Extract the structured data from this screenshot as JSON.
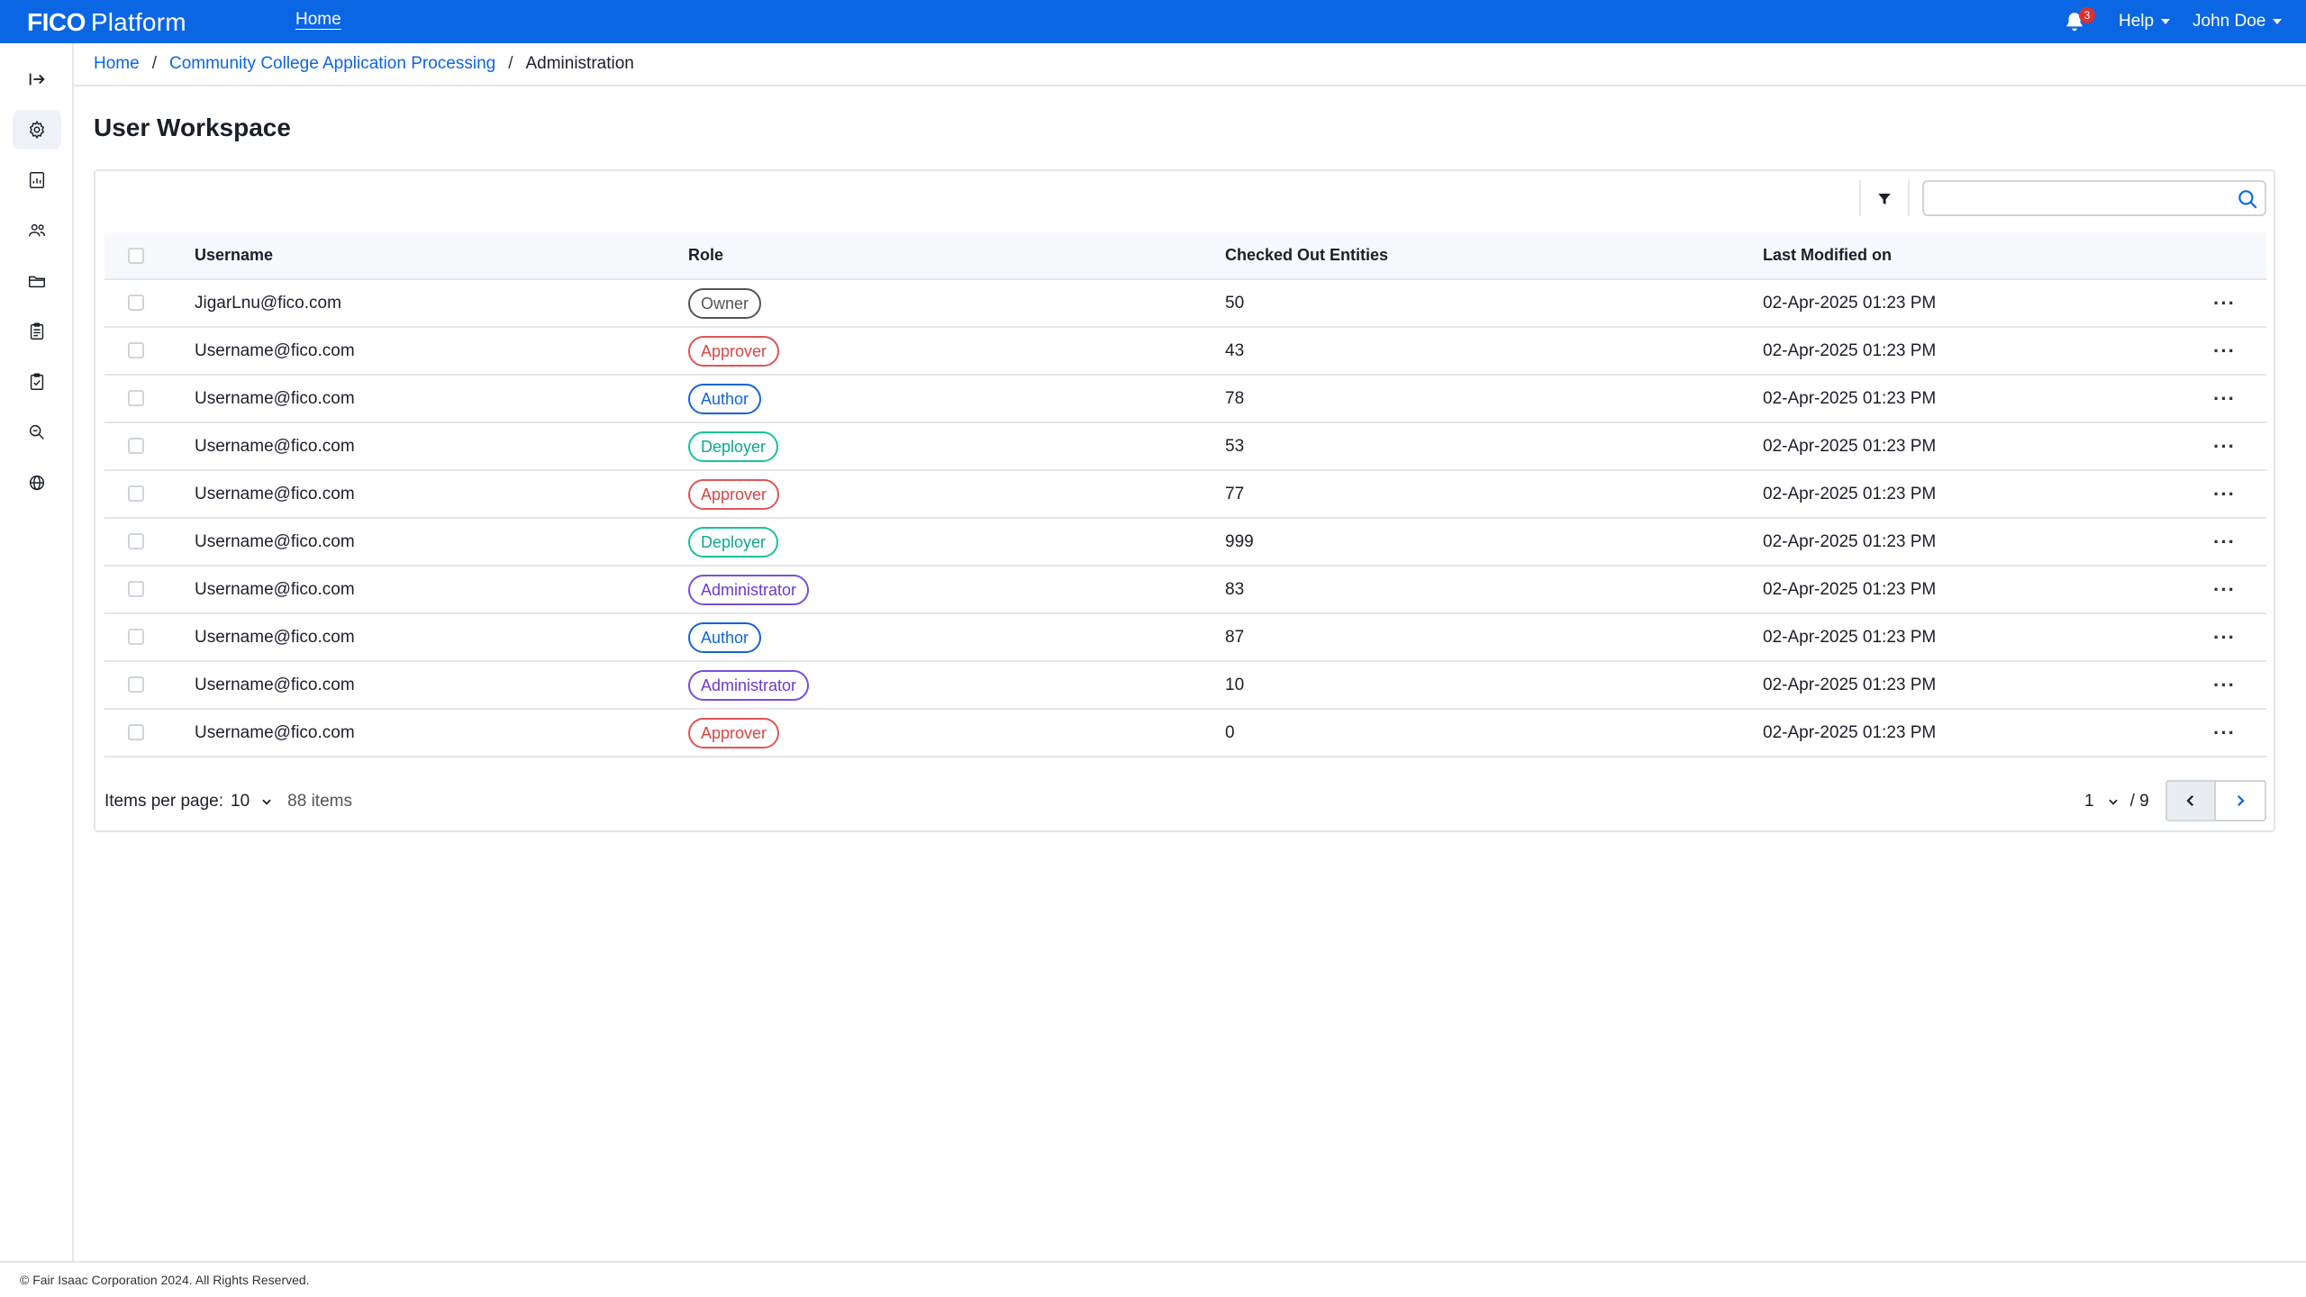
{
  "header": {
    "brand_bold": "FICO",
    "brand_rest": "Platform",
    "nav_home": "Home",
    "notification_count": "3",
    "help_label": "Help",
    "user_label": "John Doe",
    "accent": "#0b66e4"
  },
  "sidebar": {
    "items": [
      {
        "icon": "expand-arrow-icon"
      },
      {
        "icon": "gear-icon",
        "active": true
      },
      {
        "icon": "report-icon"
      },
      {
        "icon": "users-icon"
      },
      {
        "icon": "folder-icon"
      },
      {
        "icon": "clipboard-list-icon"
      },
      {
        "icon": "clipboard-check-icon"
      },
      {
        "icon": "search-zoom-icon"
      },
      {
        "icon": "globe-icon"
      }
    ]
  },
  "breadcrumb": {
    "home": "Home",
    "project": "Community College Application Processing",
    "current": "Administration",
    "separator": "/"
  },
  "page": {
    "title": "User Workspace"
  },
  "search": {
    "value": "",
    "placeholder": ""
  },
  "table": {
    "columns": {
      "username": "Username",
      "role": "Role",
      "checked_out": "Checked Out Entities",
      "last_modified": "Last Modified on"
    },
    "rows": [
      {
        "username": "JigarLnu@fico.com",
        "role": "Owner",
        "checked_out": "50",
        "last_modified": "02-Apr-2025 01:23 PM"
      },
      {
        "username": "Username@fico.com",
        "role": "Approver",
        "checked_out": "43",
        "last_modified": "02-Apr-2025 01:23 PM"
      },
      {
        "username": "Username@fico.com",
        "role": "Author",
        "checked_out": "78",
        "last_modified": "02-Apr-2025 01:23 PM"
      },
      {
        "username": "Username@fico.com",
        "role": "Deployer",
        "checked_out": "53",
        "last_modified": "02-Apr-2025 01:23 PM"
      },
      {
        "username": "Username@fico.com",
        "role": "Approver",
        "checked_out": "77",
        "last_modified": "02-Apr-2025 01:23 PM"
      },
      {
        "username": "Username@fico.com",
        "role": "Deployer",
        "checked_out": "999",
        "last_modified": "02-Apr-2025 01:23 PM"
      },
      {
        "username": "Username@fico.com",
        "role": "Administrator",
        "checked_out": "83",
        "last_modified": "02-Apr-2025 01:23 PM"
      },
      {
        "username": "Username@fico.com",
        "role": "Author",
        "checked_out": "87",
        "last_modified": "02-Apr-2025 01:23 PM"
      },
      {
        "username": "Username@fico.com",
        "role": "Administrator",
        "checked_out": "10",
        "last_modified": "02-Apr-2025 01:23 PM"
      },
      {
        "username": "Username@fico.com",
        "role": "Approver",
        "checked_out": "0",
        "last_modified": "02-Apr-2025 01:23 PM"
      }
    ],
    "row_menu": "···"
  },
  "pagination": {
    "items_per_page_label": "Items per page:",
    "items_per_page": "10",
    "total_items": "88 items",
    "current_page": "1",
    "total_pages": "/ 9"
  },
  "footer": {
    "copyright": "© Fair Isaac Corporation 2024. All Rights Reserved."
  }
}
